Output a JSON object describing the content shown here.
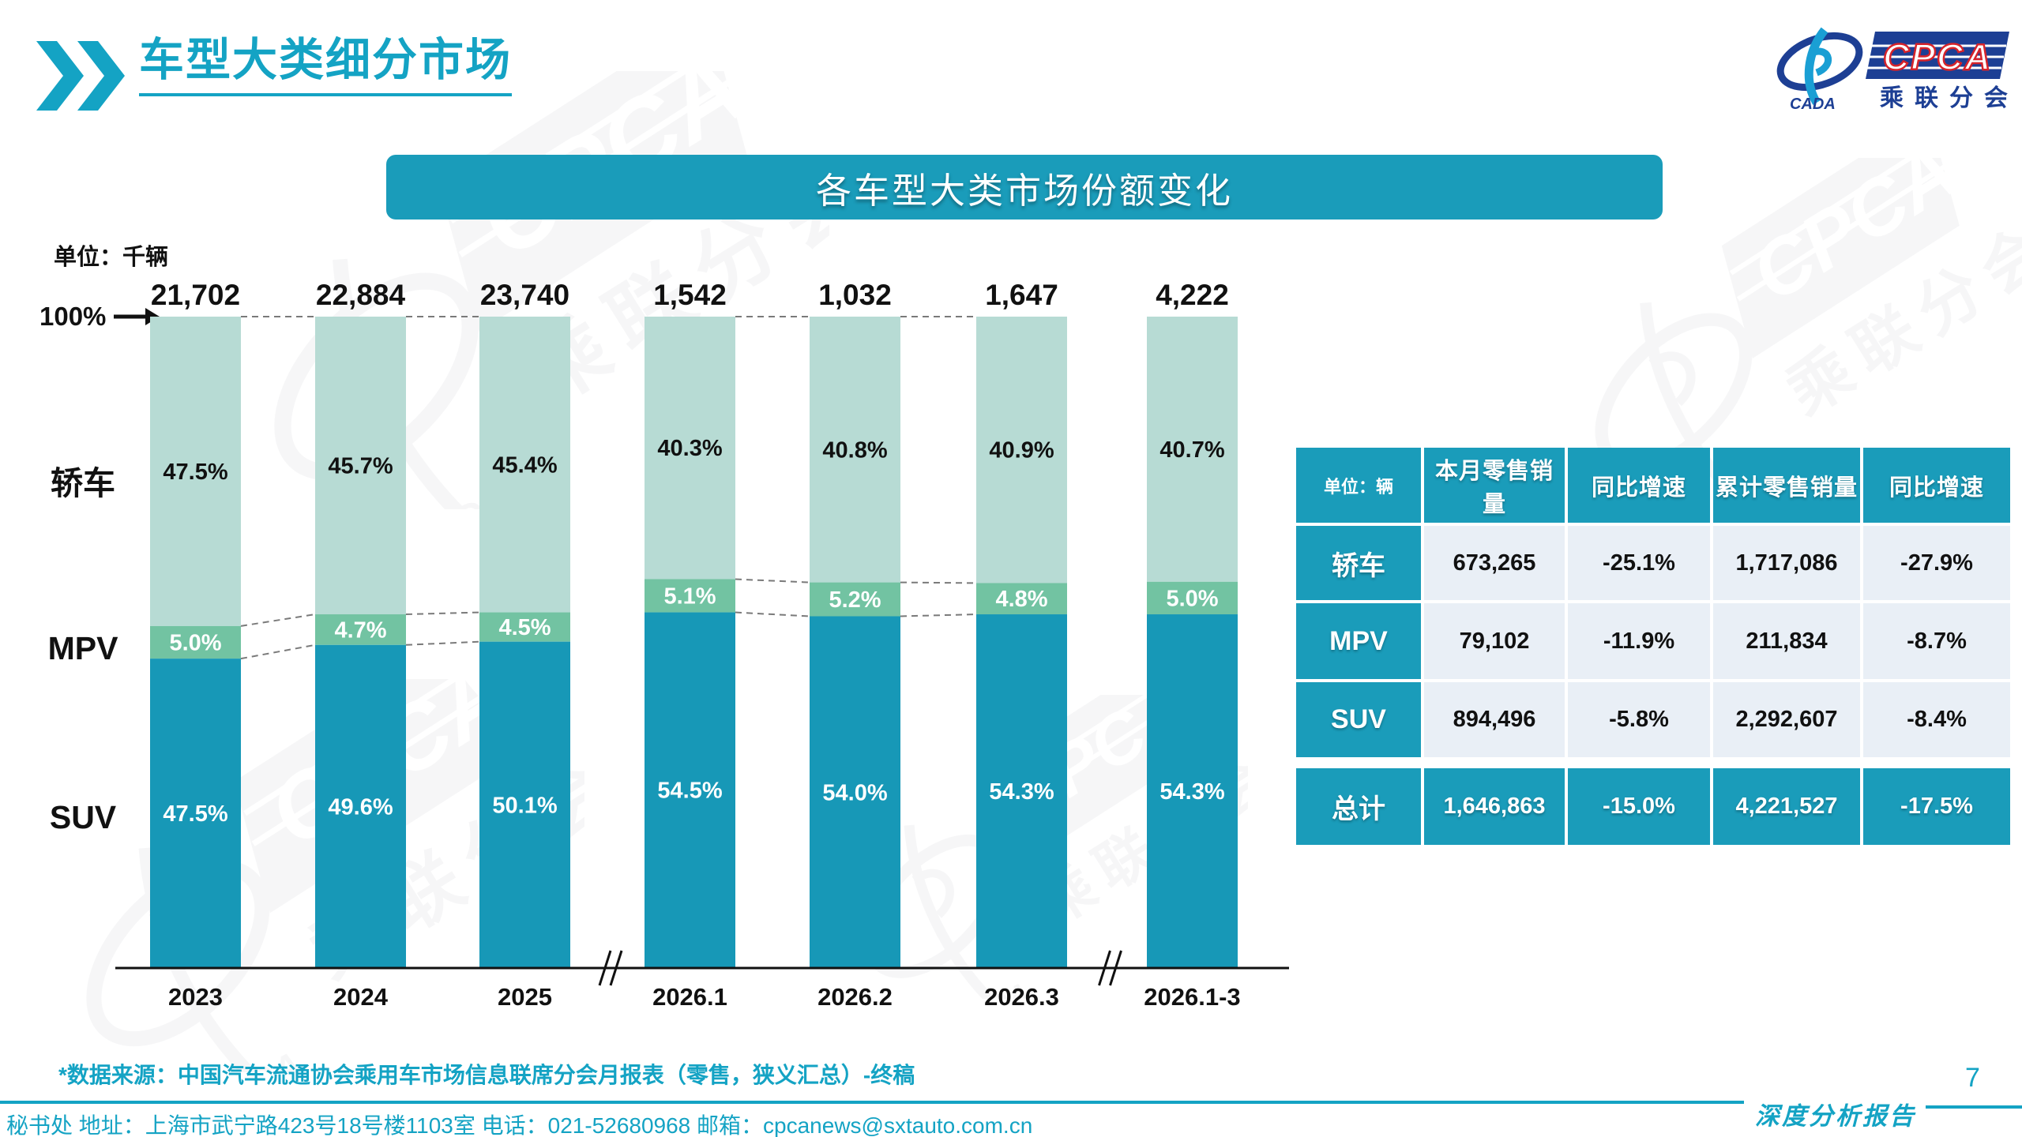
{
  "page": {
    "title": "车型大类细分市场",
    "page_number": "7",
    "report_label": "深度分析报告"
  },
  "logo": {
    "cpca": "CPCA",
    "cada": "CADA",
    "subtitle": "乘联分会"
  },
  "banner": {
    "text": "各车型大类市场份额变化"
  },
  "chart_meta": {
    "unit_label": "单位：千辆",
    "hundred_label": "100%"
  },
  "chart_data": {
    "type": "stacked-bar-100",
    "title": "各车型大类市场份额变化",
    "unit": "千辆",
    "categories": [
      "2023",
      "2024",
      "2025",
      "2026.1",
      "2026.2",
      "2026.3",
      "2026.1-3"
    ],
    "totals": [
      "21,702",
      "22,884",
      "23,740",
      "1,542",
      "1,032",
      "1,647",
      "4,222"
    ],
    "series": [
      {
        "name": "轿车",
        "color": "#b7dbd4",
        "values": [
          47.5,
          45.7,
          45.4,
          40.3,
          40.8,
          40.9,
          40.7
        ]
      },
      {
        "name": "MPV",
        "color": "#72c3a2",
        "values": [
          5.0,
          4.7,
          4.5,
          5.1,
          5.2,
          4.8,
          5.0
        ]
      },
      {
        "name": "SUV",
        "color": "#1798b7",
        "values": [
          47.5,
          49.6,
          50.1,
          54.5,
          54.0,
          54.3,
          54.3
        ]
      }
    ],
    "axis_break_after": [
      2,
      5
    ],
    "ylim": [
      0,
      100
    ],
    "grid": false,
    "legend_position": "left"
  },
  "table": {
    "unit_header": "单位：辆",
    "columns": [
      "本月零售销量",
      "同比增速",
      "累计零售销量",
      "同比增速"
    ],
    "rows": [
      {
        "label": "轿车",
        "values": [
          "673,265",
          "-25.1%",
          "1,717,086",
          "-27.9%"
        ],
        "total": false
      },
      {
        "label": "MPV",
        "values": [
          "79,102",
          "-11.9%",
          "211,834",
          "-8.7%"
        ],
        "total": false
      },
      {
        "label": "SUV",
        "values": [
          "894,496",
          "-5.8%",
          "2,292,607",
          "-8.4%"
        ],
        "total": false
      },
      {
        "label": "总计",
        "values": [
          "1,646,863",
          "-15.0%",
          "4,221,527",
          "-17.5%"
        ],
        "total": true
      }
    ]
  },
  "footer": {
    "source": "*数据来源：中国汽车流通协会乘用车市场信息联席分会月报表（零售，狭义汇总）-终稿",
    "contact": "秘书处   地址：上海市武宁路423号18号楼1103室  电话：021-52680968   邮箱：cpcanews@sxtauto.com.cn"
  },
  "colors": {
    "accent": "#1a9cba",
    "bright": "#14a3c4",
    "sedan": "#b7dbd4",
    "mpv": "#72c3a2",
    "suv": "#1798b7",
    "table_cell_bg": "#e9eff6",
    "logo_navy": "#1d3f94",
    "logo_red": "#d6232a",
    "axis": "#111111",
    "dash": "#7a7a7a"
  }
}
